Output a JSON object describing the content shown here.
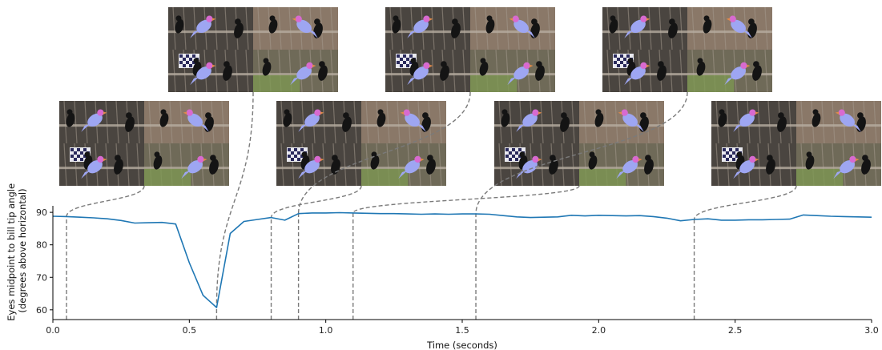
{
  "chart_data": {
    "type": "line",
    "title": "",
    "xlabel": "Time (seconds)",
    "ylabel_lines": [
      "Eyes midpoint to bill tip angle",
      "(degrees above horizontal)"
    ],
    "xlim": [
      0.0,
      3.0
    ],
    "ylim": [
      57,
      92
    ],
    "x_ticks": [
      0.0,
      0.5,
      1.0,
      1.5,
      2.0,
      2.5,
      3.0
    ],
    "x_tick_labels": [
      "0.0",
      "0.5",
      "1.0",
      "1.5",
      "2.0",
      "2.5",
      "3.0"
    ],
    "y_ticks": [
      60,
      70,
      80,
      90
    ],
    "y_tick_labels": [
      "60",
      "70",
      "80",
      "90"
    ],
    "grid": false,
    "series": [
      {
        "color": "#1f77b4",
        "x": [
          0.0,
          0.05,
          0.1,
          0.15,
          0.2,
          0.25,
          0.3,
          0.35,
          0.4,
          0.45,
          0.5,
          0.55,
          0.6,
          0.65,
          0.7,
          0.75,
          0.8,
          0.85,
          0.9,
          0.95,
          1.0,
          1.05,
          1.1,
          1.15,
          1.2,
          1.25,
          1.3,
          1.35,
          1.4,
          1.45,
          1.5,
          1.55,
          1.6,
          1.65,
          1.7,
          1.75,
          1.8,
          1.85,
          1.9,
          1.95,
          2.0,
          2.05,
          2.1,
          2.15,
          2.2,
          2.25,
          2.3,
          2.35,
          2.4,
          2.45,
          2.5,
          2.55,
          2.6,
          2.65,
          2.7,
          2.75,
          2.8,
          2.85,
          2.9,
          2.95,
          3.0
        ],
        "y": [
          88.8,
          88.7,
          88.5,
          88.3,
          88.0,
          87.5,
          86.7,
          86.8,
          86.9,
          86.4,
          74.5,
          64.5,
          60.7,
          83.5,
          87.2,
          87.8,
          88.4,
          87.6,
          89.6,
          89.8,
          89.8,
          89.9,
          89.8,
          89.7,
          89.6,
          89.6,
          89.5,
          89.4,
          89.5,
          89.4,
          89.5,
          89.5,
          89.4,
          89.0,
          88.6,
          88.4,
          88.5,
          88.6,
          89.1,
          88.9,
          89.1,
          89.0,
          88.9,
          89.0,
          88.7,
          88.2,
          87.4,
          87.8,
          88.0,
          87.6,
          87.6,
          87.7,
          87.7,
          87.8,
          87.9,
          89.2,
          89.0,
          88.8,
          88.7,
          88.6,
          88.5
        ]
      }
    ],
    "frame_markers": [
      {
        "time": 0.05,
        "value": 88.7,
        "thumbnail": "frame-thumbnail-1"
      },
      {
        "time": 0.6,
        "value": 60.7,
        "thumbnail": "frame-thumbnail-2"
      },
      {
        "time": 0.8,
        "value": 88.4,
        "thumbnail": "frame-thumbnail-3"
      },
      {
        "time": 0.9,
        "value": 89.6,
        "thumbnail": "frame-thumbnail-4"
      },
      {
        "time": 1.1,
        "value": 89.8,
        "thumbnail": "frame-thumbnail-5"
      },
      {
        "time": 1.55,
        "value": 89.5,
        "thumbnail": "frame-thumbnail-6"
      },
      {
        "time": 2.35,
        "value": 87.8,
        "thumbnail": "frame-thumbnail-7"
      }
    ],
    "marker_color": "#7a7a7a"
  },
  "thumbnails": [
    {
      "name": "frame-thumbnail-1",
      "bird_color": "#9ea6f2",
      "head_color": "#d86ad0"
    },
    {
      "name": "frame-thumbnail-2",
      "bird_color": "#9ea6f2",
      "head_color": "#d86ad0"
    },
    {
      "name": "frame-thumbnail-3",
      "bird_color": "#9ea6f2",
      "head_color": "#d86ad0"
    },
    {
      "name": "frame-thumbnail-4",
      "bird_color": "#9ea6f2",
      "head_color": "#d86ad0"
    },
    {
      "name": "frame-thumbnail-5",
      "bird_color": "#9ea6f2",
      "head_color": "#d86ad0"
    },
    {
      "name": "frame-thumbnail-6",
      "bird_color": "#9ea6f2",
      "head_color": "#d86ad0"
    },
    {
      "name": "frame-thumbnail-7",
      "bird_color": "#9ea6f2",
      "head_color": "#d86ad0"
    }
  ]
}
